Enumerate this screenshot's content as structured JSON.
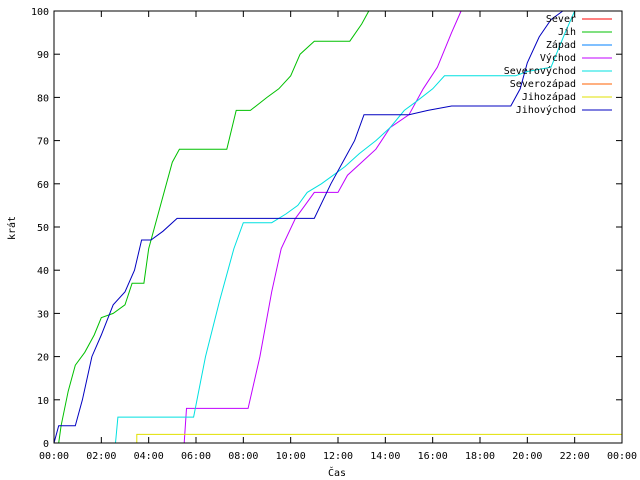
{
  "chart_data": {
    "type": "line",
    "xlabel": "Čas",
    "ylabel": "krát",
    "xlim": [
      0,
      24
    ],
    "ylim": [
      0,
      100
    ],
    "grid": false,
    "legend_placement": "top-right",
    "x_ticks": [
      "00:00",
      "02:00",
      "04:00",
      "06:00",
      "08:00",
      "10:00",
      "12:00",
      "14:00",
      "16:00",
      "18:00",
      "20:00",
      "22:00",
      "00:00"
    ],
    "y_ticks": [
      "0",
      "10",
      "20",
      "30",
      "40",
      "50",
      "60",
      "70",
      "80",
      "90",
      "100"
    ],
    "series": [
      {
        "name": "Sever",
        "color": "#ff0000",
        "points": []
      },
      {
        "name": "Jih",
        "color": "#00c000",
        "points": [
          [
            0.2,
            0
          ],
          [
            0.3,
            4
          ],
          [
            0.6,
            12
          ],
          [
            0.9,
            18
          ],
          [
            1.3,
            21
          ],
          [
            1.7,
            25
          ],
          [
            2.0,
            29
          ],
          [
            2.5,
            30
          ],
          [
            3.0,
            32
          ],
          [
            3.3,
            37
          ],
          [
            3.8,
            37
          ],
          [
            4.0,
            45
          ],
          [
            4.5,
            55
          ],
          [
            5.0,
            65
          ],
          [
            5.3,
            68
          ],
          [
            7.3,
            68
          ],
          [
            7.7,
            77
          ],
          [
            8.3,
            77
          ],
          [
            9.0,
            80
          ],
          [
            9.5,
            82
          ],
          [
            10.0,
            85
          ],
          [
            10.4,
            90
          ],
          [
            11.0,
            93
          ],
          [
            12.5,
            93
          ],
          [
            13.0,
            97
          ],
          [
            13.3,
            100
          ]
        ]
      },
      {
        "name": "Západ",
        "color": "#0080ff",
        "points": []
      },
      {
        "name": "Východ",
        "color": "#c000ff",
        "points": [
          [
            5.5,
            0
          ],
          [
            5.6,
            8
          ],
          [
            8.2,
            8
          ],
          [
            8.7,
            20
          ],
          [
            9.2,
            35
          ],
          [
            9.6,
            45
          ],
          [
            10.2,
            52
          ],
          [
            10.6,
            55
          ],
          [
            11.0,
            58
          ],
          [
            12.0,
            58
          ],
          [
            12.4,
            62
          ],
          [
            13.0,
            65
          ],
          [
            13.6,
            68
          ],
          [
            14.2,
            73
          ],
          [
            15.0,
            76
          ],
          [
            15.6,
            82
          ],
          [
            16.2,
            87
          ],
          [
            16.8,
            95
          ],
          [
            17.2,
            100
          ]
        ]
      },
      {
        "name": "Severovýchod",
        "color": "#00e0e0",
        "points": [
          [
            2.6,
            0
          ],
          [
            2.7,
            6
          ],
          [
            5.9,
            6
          ],
          [
            6.4,
            20
          ],
          [
            7.0,
            33
          ],
          [
            7.6,
            45
          ],
          [
            8.0,
            51
          ],
          [
            9.2,
            51
          ],
          [
            9.8,
            53
          ],
          [
            10.3,
            55
          ],
          [
            10.7,
            58
          ],
          [
            11.3,
            60
          ],
          [
            11.8,
            62
          ],
          [
            12.3,
            64
          ],
          [
            12.9,
            67
          ],
          [
            13.6,
            70
          ],
          [
            14.2,
            73
          ],
          [
            14.8,
            77
          ],
          [
            15.3,
            79
          ],
          [
            16.0,
            82
          ],
          [
            16.5,
            85
          ],
          [
            19.5,
            85
          ],
          [
            20.0,
            86
          ],
          [
            21.0,
            87
          ],
          [
            21.6,
            95
          ],
          [
            22.0,
            100
          ]
        ]
      },
      {
        "name": "Severozápad",
        "color": "#ff6000",
        "points": []
      },
      {
        "name": "Jihozápad",
        "color": "#e0e000",
        "points": [
          [
            3.5,
            0
          ],
          [
            3.5,
            2
          ],
          [
            24,
            2
          ]
        ]
      },
      {
        "name": "Jihovýchod",
        "color": "#0000c0",
        "points": [
          [
            0,
            0
          ],
          [
            0.2,
            4
          ],
          [
            0.9,
            4
          ],
          [
            1.2,
            10
          ],
          [
            1.6,
            20
          ],
          [
            2.0,
            25
          ],
          [
            2.5,
            32
          ],
          [
            3.0,
            35
          ],
          [
            3.4,
            40
          ],
          [
            3.7,
            47
          ],
          [
            4.1,
            47
          ],
          [
            4.6,
            49
          ],
          [
            5.2,
            52
          ],
          [
            11.0,
            52
          ],
          [
            11.7,
            60
          ],
          [
            12.3,
            66
          ],
          [
            12.7,
            70
          ],
          [
            13.1,
            76
          ],
          [
            15.0,
            76
          ],
          [
            15.8,
            77
          ],
          [
            16.8,
            78
          ],
          [
            19.3,
            78
          ],
          [
            19.7,
            82
          ],
          [
            20.0,
            88
          ],
          [
            20.5,
            94
          ],
          [
            21.0,
            98
          ],
          [
            21.5,
            100
          ]
        ]
      }
    ]
  }
}
